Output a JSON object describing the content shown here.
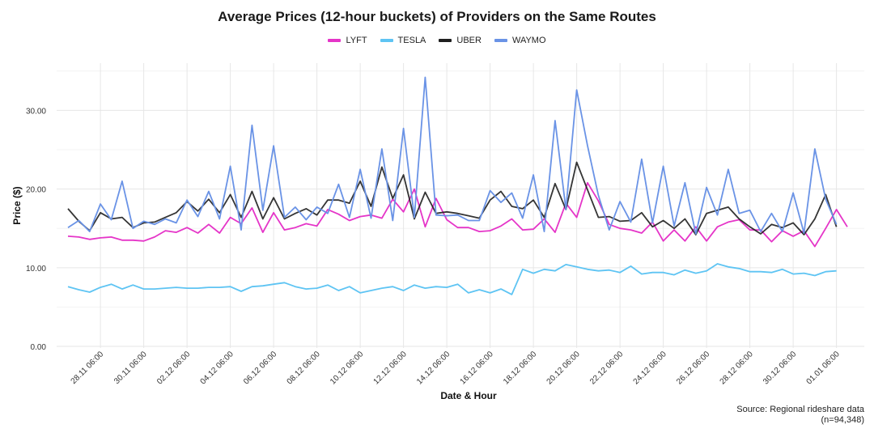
{
  "chart_data": {
    "type": "line",
    "title": "Average Prices (12-hour buckets) of Providers on the Same Routes",
    "xlabel": "Date & Hour",
    "ylabel": "Price ($)",
    "ylim": [
      -0.2,
      36
    ],
    "y_ticks": [
      "0.00",
      "10.00",
      "20.00",
      "30.00"
    ],
    "x_ticks": [
      "28.11 06:00",
      "30.11 06:00",
      "02.12 06:00",
      "04.12 06:00",
      "06.12 06:00",
      "08.12 06:00",
      "10.12 06:00",
      "12.12 06:00",
      "14.12 06:00",
      "16.12 06:00",
      "18.12 06:00",
      "20.12 06:00",
      "22.12 06:00",
      "24.12 06:00",
      "26.12 06:00",
      "28.12 06:00",
      "30.12 06:00",
      "01.01 06:00"
    ],
    "x_start_label": "26.11 18:00",
    "x_step_hours": 12,
    "grid": true,
    "legend_position": "top",
    "caption": [
      "Source: Regional rideshare data",
      "(n=94,348)"
    ],
    "series": [
      {
        "name": "LYFT",
        "color": "#e535c8",
        "values": [
          14.0,
          13.9,
          13.6,
          13.8,
          13.9,
          13.5,
          13.5,
          13.4,
          13.9,
          14.7,
          14.5,
          15.1,
          14.4,
          15.5,
          14.4,
          16.4,
          15.6,
          17.6,
          14.5,
          17.0,
          14.8,
          15.1,
          15.6,
          15.3,
          17.4,
          16.8,
          16.0,
          16.5,
          16.7,
          16.3,
          18.7,
          17.1,
          20.0,
          15.2,
          18.8,
          16.1,
          15.1,
          15.1,
          14.6,
          14.7,
          15.3,
          16.2,
          14.8,
          14.9,
          16.2,
          14.5,
          18.2,
          16.4,
          20.8,
          18.5,
          15.5,
          15.0,
          14.8,
          14.4,
          15.8,
          13.4,
          14.8,
          13.4,
          15.2,
          13.4,
          15.2,
          15.8,
          16.1,
          14.8,
          14.8,
          13.3,
          14.7,
          14.0,
          14.7,
          12.7,
          15.0,
          17.4,
          15.2
        ]
      },
      {
        "name": "TESLA",
        "color": "#5ec4f3",
        "values": [
          7.6,
          7.2,
          6.9,
          7.5,
          7.9,
          7.3,
          7.8,
          7.3,
          7.3,
          7.4,
          7.5,
          7.4,
          7.4,
          7.5,
          7.5,
          7.6,
          7.0,
          7.6,
          7.7,
          7.9,
          8.1,
          7.6,
          7.3,
          7.4,
          7.8,
          7.1,
          7.6,
          6.8,
          7.1,
          7.4,
          7.6,
          7.1,
          7.8,
          7.4,
          7.6,
          7.5,
          7.9,
          6.8,
          7.2,
          6.8,
          7.3,
          6.6,
          9.8,
          9.3,
          9.8,
          9.6,
          10.4,
          10.1,
          9.8,
          9.6,
          9.7,
          9.4,
          10.2,
          9.2,
          9.4,
          9.4,
          9.1,
          9.7,
          9.3,
          9.6,
          10.5,
          10.1,
          9.9,
          9.5,
          9.5,
          9.4,
          9.8,
          9.2,
          9.3,
          9.0,
          9.5,
          9.6,
          null
        ]
      },
      {
        "name": "UBER",
        "color": "#1f1f1f",
        "values": [
          17.5,
          15.9,
          14.7,
          17.0,
          16.2,
          16.4,
          15.1,
          15.7,
          15.8,
          16.4,
          17.0,
          18.4,
          17.2,
          18.7,
          17.0,
          19.3,
          16.4,
          19.7,
          16.2,
          18.9,
          16.2,
          16.9,
          17.5,
          16.7,
          18.6,
          18.6,
          18.2,
          21.0,
          17.8,
          22.8,
          18.8,
          21.8,
          16.2,
          19.6,
          16.9,
          17.1,
          16.9,
          16.6,
          16.3,
          18.6,
          19.7,
          17.8,
          17.5,
          18.6,
          16.4,
          20.7,
          17.4,
          23.4,
          19.9,
          16.4,
          16.5,
          15.9,
          16.0,
          17.0,
          15.2,
          16.0,
          15.0,
          16.2,
          14.2,
          16.9,
          17.3,
          17.7,
          16.2,
          15.2,
          14.3,
          15.5,
          15.1,
          15.7,
          14.2,
          16.2,
          19.3,
          15.2
        ]
      },
      {
        "name": "WAYMO",
        "color": "#6a93e6",
        "values": [
          15.1,
          16.0,
          14.6,
          18.1,
          16.1,
          21.0,
          15.0,
          15.9,
          15.5,
          16.2,
          15.7,
          18.6,
          16.5,
          19.7,
          16.2,
          22.9,
          14.8,
          28.1,
          17.3,
          25.5,
          16.4,
          17.7,
          16.1,
          17.7,
          16.9,
          20.6,
          16.4,
          22.5,
          16.3,
          25.1,
          16.0,
          27.7,
          16.4,
          34.2,
          16.7,
          16.6,
          16.7,
          16.0,
          16.0,
          19.8,
          18.3,
          19.5,
          16.3,
          21.8,
          14.6,
          28.7,
          17.4,
          32.6,
          25.5,
          19.2,
          14.8,
          18.4,
          15.8,
          23.8,
          15.7,
          22.9,
          15.3,
          20.8,
          14.3,
          20.2,
          16.7,
          22.5,
          16.9,
          17.3,
          14.6,
          16.9,
          14.6,
          19.5,
          14.4,
          25.1,
          18.7,
          15.5
        ]
      }
    ]
  }
}
